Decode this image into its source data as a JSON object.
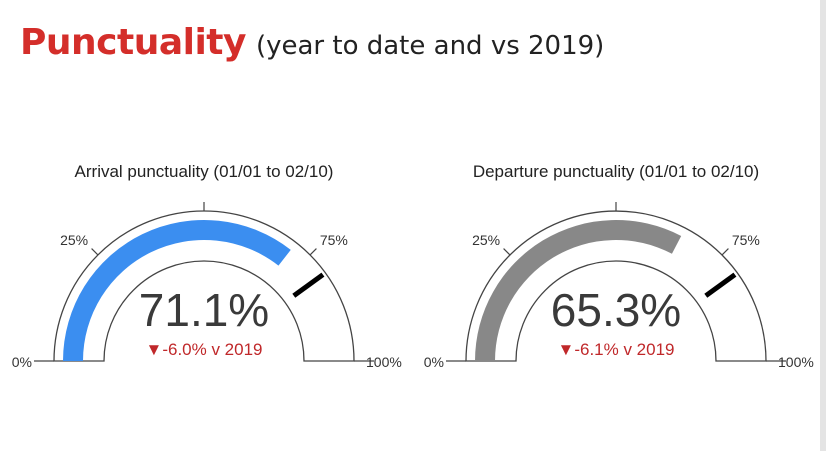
{
  "slide": {
    "title": "Punctuality",
    "subtitle": "(year to date and vs 2019)"
  },
  "chart_data": [
    {
      "type": "gauge",
      "title": "Arrival punctuality (01/01 to 02/10)",
      "value": 71.1,
      "value_label": "71.1%",
      "change_label": "▼-6.0% v 2019",
      "min": 0,
      "max": 100,
      "target": 80,
      "tick_labels": [
        "0%",
        "25%",
        "75%",
        "100%"
      ],
      "fill_color": "#3b8ef0"
    },
    {
      "type": "gauge",
      "title": "Departure punctuality (01/01 to 02/10)",
      "value": 65.3,
      "value_label": "65.3%",
      "change_label": "▼-6.1% v 2019",
      "min": 0,
      "max": 100,
      "target": 80,
      "tick_labels": [
        "0%",
        "25%",
        "75%",
        "100%"
      ],
      "fill_color": "#888888"
    }
  ],
  "colors": {
    "title": "#d42e2a",
    "change_negative": "#c0282a",
    "outline": "#444444",
    "target_marker": "#000000"
  }
}
